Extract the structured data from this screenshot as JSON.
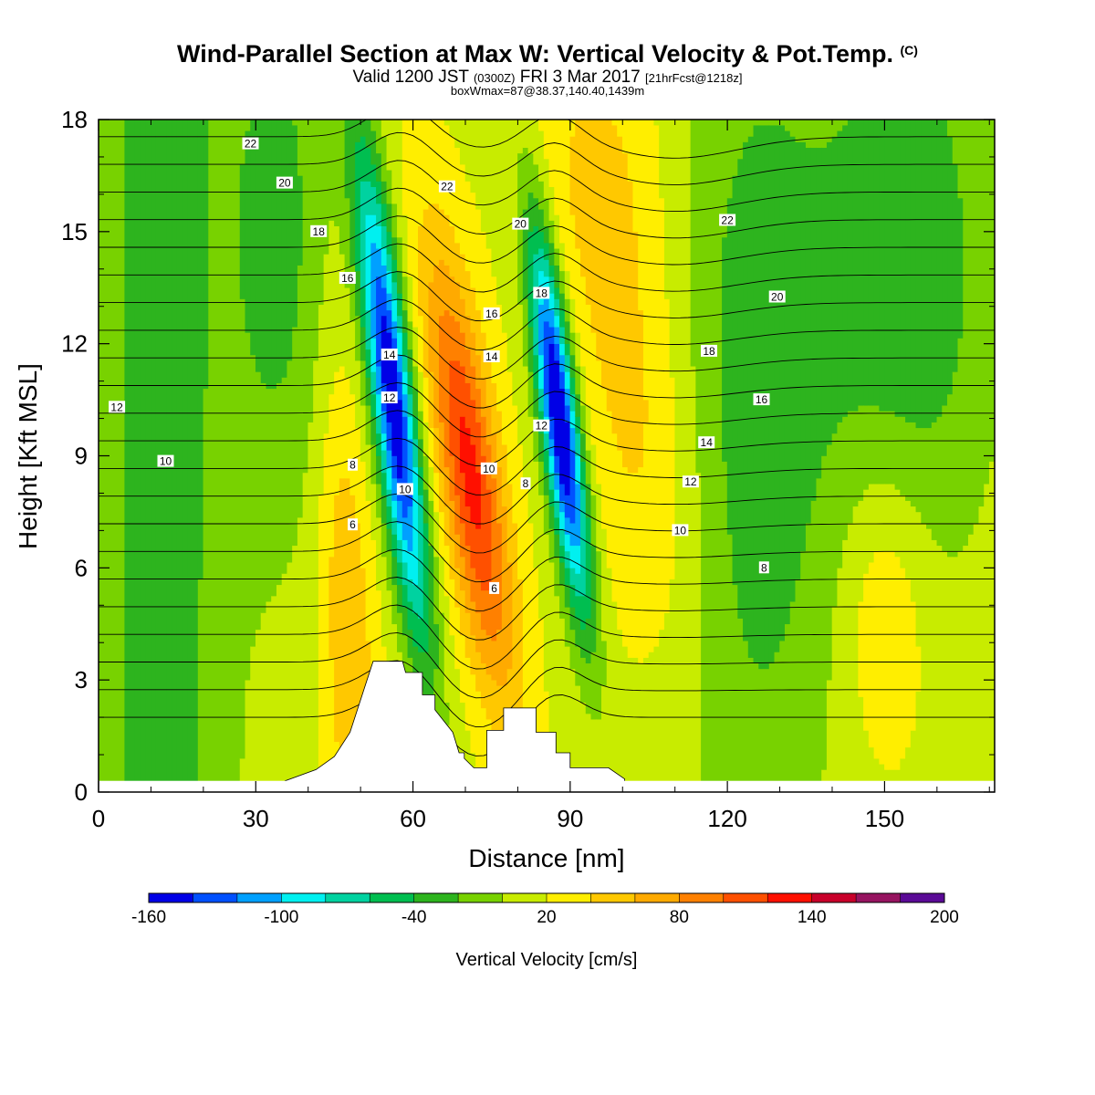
{
  "title": {
    "main": "Wind-Parallel Section at Max W: Vertical Velocity & Pot.Temp.",
    "copyright": "(C)",
    "valid_prefix": "Valid 1200 JST",
    "valid_utc": "(0300Z)",
    "valid_date": "FRI 3 Mar 2017",
    "forecast": "[21hrFcst@1218z]",
    "box": "boxWmax=87@38.37,140.40,1439m"
  },
  "chart_data": {
    "type": "heatmap",
    "xlabel": "Distance [nm]",
    "ylabel": "Height [Kft MSL]",
    "xlim": [
      0,
      171
    ],
    "ylim": [
      0,
      18
    ],
    "x_ticks": [
      "0",
      "30",
      "60",
      "90",
      "120",
      "150"
    ],
    "x_tick_values": [
      0,
      30,
      60,
      90,
      120,
      150
    ],
    "y_ticks": [
      "0",
      "3",
      "6",
      "9",
      "12",
      "15",
      "18"
    ],
    "y_tick_values": [
      0,
      3,
      6,
      9,
      12,
      15,
      18
    ],
    "colorbar": {
      "title": "Vertical Velocity [cm/s]",
      "labels": [
        "-160",
        "-100",
        "-40",
        "20",
        "80",
        "140",
        "200"
      ],
      "label_values": [
        -160,
        -100,
        -40,
        20,
        80,
        140,
        200
      ],
      "range": [
        -160,
        200
      ],
      "colors": [
        "#0000e6",
        "#0050ff",
        "#00a0ff",
        "#00f0f0",
        "#00d2a0",
        "#00be50",
        "#2db41e",
        "#78d200",
        "#c8ec00",
        "#ffee00",
        "#ffc800",
        "#ffaa00",
        "#ff8000",
        "#ff5000",
        "#ff1000",
        "#c8002a",
        "#961460",
        "#5a0a96"
      ]
    },
    "terrain_profile": [
      [
        34,
        0
      ],
      [
        35.6,
        0.3
      ],
      [
        41.5,
        0.6
      ],
      [
        45,
        0.95
      ],
      [
        48,
        1.6
      ],
      [
        51,
        2.9
      ],
      [
        52.4,
        3.5
      ],
      [
        58,
        3.5
      ],
      [
        58.6,
        3.2
      ],
      [
        61.8,
        3.2
      ],
      [
        61.8,
        2.6
      ],
      [
        64.2,
        2.6
      ],
      [
        64.2,
        2.2
      ],
      [
        67.6,
        1.6
      ],
      [
        68.8,
        1.05
      ],
      [
        69.8,
        1.05
      ],
      [
        69.8,
        0.9
      ],
      [
        71.6,
        0.65
      ],
      [
        74.1,
        0.65
      ],
      [
        74.1,
        1.65
      ],
      [
        77.3,
        1.65
      ],
      [
        77.3,
        2.25
      ],
      [
        83.5,
        2.25
      ],
      [
        83.5,
        1.6
      ],
      [
        87.3,
        1.6
      ],
      [
        87.3,
        1.05
      ],
      [
        90,
        1.05
      ],
      [
        90,
        0.65
      ],
      [
        97.3,
        0.65
      ],
      [
        100.4,
        0.35
      ],
      [
        100.4,
        0
      ]
    ],
    "contour_labels": [
      {
        "text": "22",
        "x": 29,
        "y": 17.35
      },
      {
        "text": "20",
        "x": 35.5,
        "y": 16.3
      },
      {
        "text": "18",
        "x": 42,
        "y": 15.0
      },
      {
        "text": "16",
        "x": 47.5,
        "y": 13.75
      },
      {
        "text": "14",
        "x": 55.5,
        "y": 11.7
      },
      {
        "text": "12",
        "x": 55.5,
        "y": 10.55
      },
      {
        "text": "12",
        "x": 3.5,
        "y": 10.3
      },
      {
        "text": "10",
        "x": 12.8,
        "y": 8.85
      },
      {
        "text": "8",
        "x": 48.5,
        "y": 8.75
      },
      {
        "text": "10",
        "x": 58.5,
        "y": 8.1
      },
      {
        "text": "6",
        "x": 48.5,
        "y": 7.15
      },
      {
        "text": "22",
        "x": 66.5,
        "y": 16.2
      },
      {
        "text": "20",
        "x": 80.5,
        "y": 15.2
      },
      {
        "text": "16",
        "x": 75,
        "y": 12.8
      },
      {
        "text": "14",
        "x": 75,
        "y": 11.65
      },
      {
        "text": "10",
        "x": 74.5,
        "y": 8.65
      },
      {
        "text": "8",
        "x": 81.5,
        "y": 8.25
      },
      {
        "text": "6",
        "x": 75.5,
        "y": 5.45
      },
      {
        "text": "18",
        "x": 84.5,
        "y": 13.35
      },
      {
        "text": "12",
        "x": 84.5,
        "y": 9.8
      },
      {
        "text": "22",
        "x": 120,
        "y": 15.3
      },
      {
        "text": "20",
        "x": 129.5,
        "y": 13.25
      },
      {
        "text": "18",
        "x": 116.5,
        "y": 11.8
      },
      {
        "text": "16",
        "x": 126.5,
        "y": 10.5
      },
      {
        "text": "14",
        "x": 116,
        "y": 9.35
      },
      {
        "text": "12",
        "x": 113,
        "y": 8.3
      },
      {
        "text": "10",
        "x": 111,
        "y": 7.0
      },
      {
        "text": "8",
        "x": 127,
        "y": 6.0
      }
    ]
  }
}
